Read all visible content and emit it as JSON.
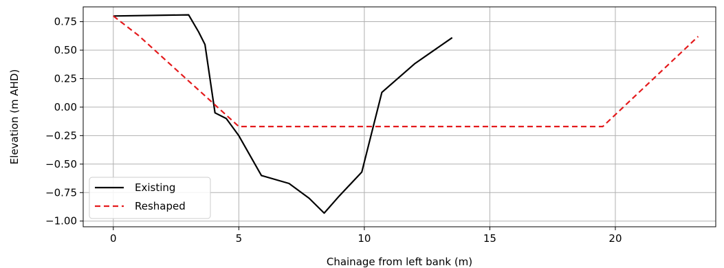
{
  "chart_data": {
    "type": "line",
    "title": "",
    "xlabel": "Chainage from left bank (m)",
    "ylabel": "Elevation (m AHD)",
    "xlim": [
      -1.2,
      24.0
    ],
    "ylim": [
      -1.05,
      0.88
    ],
    "xticks": [
      0,
      5,
      10,
      15,
      20
    ],
    "xtick_labels": [
      "0",
      "5",
      "10",
      "15",
      "20"
    ],
    "yticks": [
      0.75,
      0.5,
      0.25,
      0.0,
      -0.25,
      -0.5,
      -0.75,
      -1.0
    ],
    "ytick_labels": [
      "0.75",
      "0.50",
      "0.25",
      "0.00",
      "−0.25",
      "−0.50",
      "−0.75",
      "−1.00"
    ],
    "grid": true,
    "legend_position": "lower-left",
    "series": [
      {
        "name": "Existing",
        "color": "#000000",
        "style": "solid",
        "x": [
          0.0,
          3.0,
          3.4,
          3.65,
          4.05,
          4.5,
          5.0,
          5.9,
          7.0,
          7.8,
          8.4,
          9.0,
          9.9,
          10.7,
          12.0,
          13.5
        ],
        "y": [
          0.8,
          0.81,
          0.66,
          0.55,
          -0.05,
          -0.1,
          -0.25,
          -0.6,
          -0.67,
          -0.8,
          -0.93,
          -0.78,
          -0.57,
          0.13,
          0.38,
          0.61
        ]
      },
      {
        "name": "Reshaped",
        "color": "#e41a1c",
        "style": "dashed",
        "x": [
          0.0,
          1.0,
          5.0,
          19.5,
          23.3
        ],
        "y": [
          0.8,
          0.63,
          -0.17,
          -0.17,
          0.62
        ]
      }
    ]
  }
}
